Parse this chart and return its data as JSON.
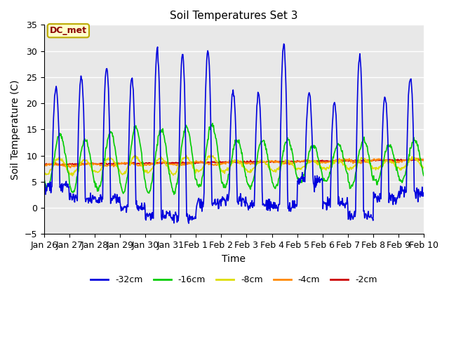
{
  "title": "Soil Temperatures Set 3",
  "xlabel": "Time",
  "ylabel": "Soil Temperature (C)",
  "ylim": [
    -5,
    35
  ],
  "bg_color": "#e8e8e8",
  "plot_bg": "#e8e8e8",
  "annotation_text": "DC_met",
  "annotation_bg": "#ffffcc",
  "annotation_border": "#bbaa00",
  "x_tick_labels": [
    "Jan 26",
    "Jan 27",
    "Jan 28",
    "Jan 29",
    "Jan 30",
    "Jan 31",
    "Feb 1",
    "Feb 2",
    "Feb 3",
    "Feb 4",
    "Feb 5",
    "Feb 6",
    "Feb 7",
    "Feb 8",
    "Feb 9",
    "Feb 10"
  ],
  "series": [
    {
      "label": "-32cm",
      "color": "#0000dd",
      "lw": 1.2
    },
    {
      "label": "-16cm",
      "color": "#00cc00",
      "lw": 1.2
    },
    {
      "label": "-8cm",
      "color": "#dddd00",
      "lw": 1.2
    },
    {
      "label": "-4cm",
      "color": "#ff8800",
      "lw": 1.2
    },
    {
      "label": "-2cm",
      "color": "#cc0000",
      "lw": 1.2
    }
  ],
  "peak_heights": [
    23,
    25,
    27,
    24.5,
    30,
    29.5,
    30,
    22.5,
    22,
    31.5,
    22,
    20,
    29,
    21,
    25
  ],
  "trough_heights": [
    4,
    2,
    1.5,
    0.2,
    -1.5,
    -1.8,
    1,
    1.5,
    0.5,
    0.2,
    5.2,
    0.8,
    -1.5,
    2,
    3
  ],
  "peak4_heights": [
    14,
    13,
    14.5,
    15.5,
    15,
    15.5,
    16,
    13,
    13,
    13,
    12,
    12,
    13,
    12,
    13
  ],
  "trough4_heights": [
    4,
    3,
    3.5,
    3,
    3,
    3,
    4,
    4,
    4,
    4,
    5,
    5,
    4,
    5,
    5
  ],
  "peak8_heights": [
    9.5,
    9.2,
    9.5,
    9.8,
    9.5,
    9.8,
    10,
    9,
    9,
    9,
    9,
    9,
    9.5,
    9,
    9.5
  ],
  "trough8_heights": [
    6.5,
    6.5,
    6.8,
    6.5,
    6.8,
    6.5,
    7,
    7,
    7,
    7,
    7.5,
    7.5,
    7.5,
    7.5,
    7.5
  ]
}
